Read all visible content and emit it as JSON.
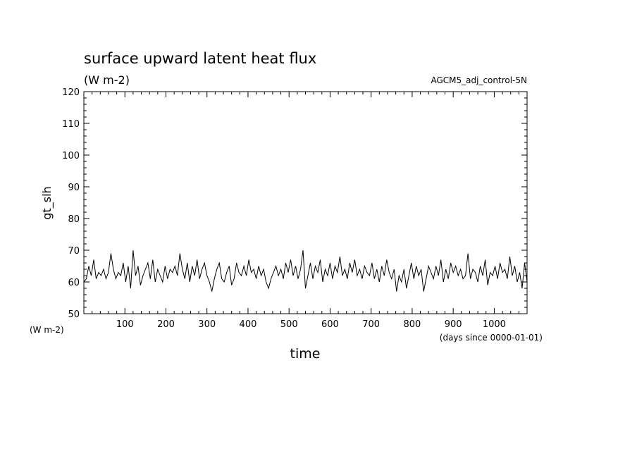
{
  "chart_data": {
    "type": "line",
    "title": "surface upward latent heat flux",
    "title_units": "(W m-2)",
    "run_label": "AGCM5_adj_control-5N",
    "ylabel": "gt_slh",
    "yunits": "(W m-2)",
    "xlabel": "time",
    "xunits": "(days since 0000-01-01)",
    "xlim": [
      0,
      1080
    ],
    "ylim": [
      50,
      120
    ],
    "x_ticks": [
      100,
      200,
      300,
      400,
      500,
      600,
      700,
      800,
      900,
      1000
    ],
    "y_ticks": [
      50,
      60,
      70,
      80,
      90,
      100,
      110,
      120
    ],
    "grid": false,
    "series": [
      {
        "color": "#000000",
        "x": [
          0,
          6,
          12,
          18,
          24,
          30,
          36,
          42,
          48,
          54,
          60,
          66,
          72,
          78,
          84,
          90,
          96,
          102,
          108,
          114,
          120,
          126,
          132,
          138,
          144,
          150,
          156,
          162,
          168,
          174,
          180,
          186,
          192,
          198,
          204,
          210,
          216,
          222,
          228,
          234,
          240,
          246,
          252,
          258,
          264,
          270,
          276,
          282,
          288,
          294,
          300,
          306,
          312,
          318,
          324,
          330,
          336,
          342,
          348,
          354,
          360,
          366,
          372,
          378,
          384,
          390,
          396,
          402,
          408,
          414,
          420,
          426,
          432,
          438,
          444,
          450,
          456,
          462,
          468,
          474,
          480,
          486,
          492,
          498,
          504,
          510,
          516,
          522,
          528,
          534,
          540,
          546,
          552,
          558,
          564,
          570,
          576,
          582,
          588,
          594,
          600,
          606,
          612,
          618,
          624,
          630,
          636,
          642,
          648,
          654,
          660,
          666,
          672,
          678,
          684,
          690,
          696,
          702,
          708,
          714,
          720,
          726,
          732,
          738,
          744,
          750,
          756,
          762,
          768,
          774,
          780,
          786,
          792,
          798,
          804,
          810,
          816,
          822,
          828,
          834,
          840,
          846,
          852,
          858,
          864,
          870,
          876,
          882,
          888,
          894,
          900,
          906,
          912,
          918,
          924,
          930,
          936,
          942,
          948,
          954,
          960,
          966,
          972,
          978,
          984,
          990,
          996,
          1002,
          1008,
          1014,
          1020,
          1026,
          1032,
          1038,
          1044,
          1050,
          1056,
          1062,
          1068,
          1074,
          1080
        ],
        "y": [
          60,
          61,
          65,
          62,
          67,
          61,
          63,
          62,
          64,
          61,
          63,
          69,
          64,
          61,
          63,
          62,
          66,
          60,
          65,
          58,
          70,
          62,
          65,
          59,
          62,
          64,
          66,
          61,
          67,
          60,
          64,
          62,
          60,
          65,
          61,
          64,
          63,
          65,
          62,
          69,
          64,
          61,
          66,
          60,
          65,
          62,
          67,
          61,
          64,
          66,
          62,
          60,
          57,
          61,
          64,
          66,
          61,
          60,
          63,
          65,
          59,
          61,
          66,
          63,
          62,
          65,
          62,
          67,
          63,
          64,
          61,
          65,
          62,
          64,
          60,
          58,
          61,
          63,
          65,
          62,
          64,
          61,
          66,
          63,
          67,
          62,
          65,
          61,
          64,
          70,
          58,
          62,
          66,
          61,
          65,
          63,
          67,
          60,
          64,
          62,
          66,
          61,
          65,
          63,
          68,
          62,
          64,
          61,
          66,
          63,
          67,
          62,
          64,
          61,
          65,
          63,
          62,
          66,
          61,
          64,
          60,
          65,
          62,
          67,
          63,
          61,
          64,
          57,
          62,
          60,
          64,
          58,
          62,
          66,
          61,
          65,
          62,
          64,
          57,
          61,
          65,
          63,
          61,
          65,
          62,
          67,
          60,
          64,
          61,
          66,
          63,
          65,
          62,
          64,
          61,
          62,
          69,
          61,
          64,
          63,
          60,
          65,
          62,
          67,
          59,
          63,
          62,
          65,
          61,
          66,
          63,
          64,
          61,
          68,
          62,
          65,
          60,
          63,
          58,
          66,
          60
        ]
      }
    ]
  }
}
